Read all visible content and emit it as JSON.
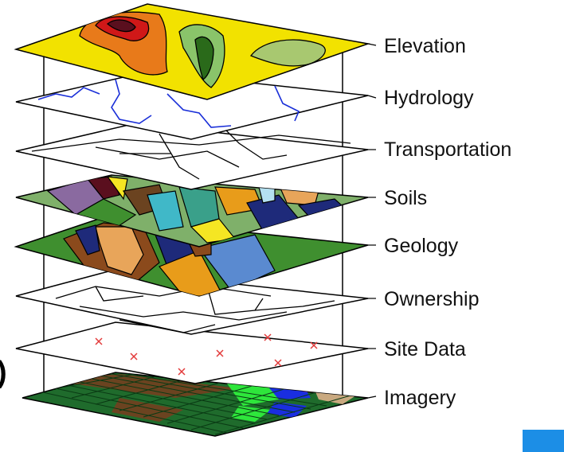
{
  "diagram": {
    "layers": [
      {
        "label": "Elevation",
        "fill": "#f2e200"
      },
      {
        "label": "Hydrology",
        "fill": "#ffffff"
      },
      {
        "label": "Transportation",
        "fill": "#ffffff"
      },
      {
        "label": "Soils",
        "fill": "#7fb06a"
      },
      {
        "label": "Geology",
        "fill": "#3f8f2f"
      },
      {
        "label": "Ownership",
        "fill": "#ffffff"
      },
      {
        "label": "Site Data",
        "fill": "#ffffff"
      },
      {
        "label": "Imagery",
        "fill": "#1f6b2c"
      }
    ],
    "edge_fragment": ")",
    "colors": {
      "outline": "#000000",
      "river": "#1a2fd8",
      "site_marker": "#e23a3a",
      "corner_box": "#1c8ee6"
    }
  }
}
